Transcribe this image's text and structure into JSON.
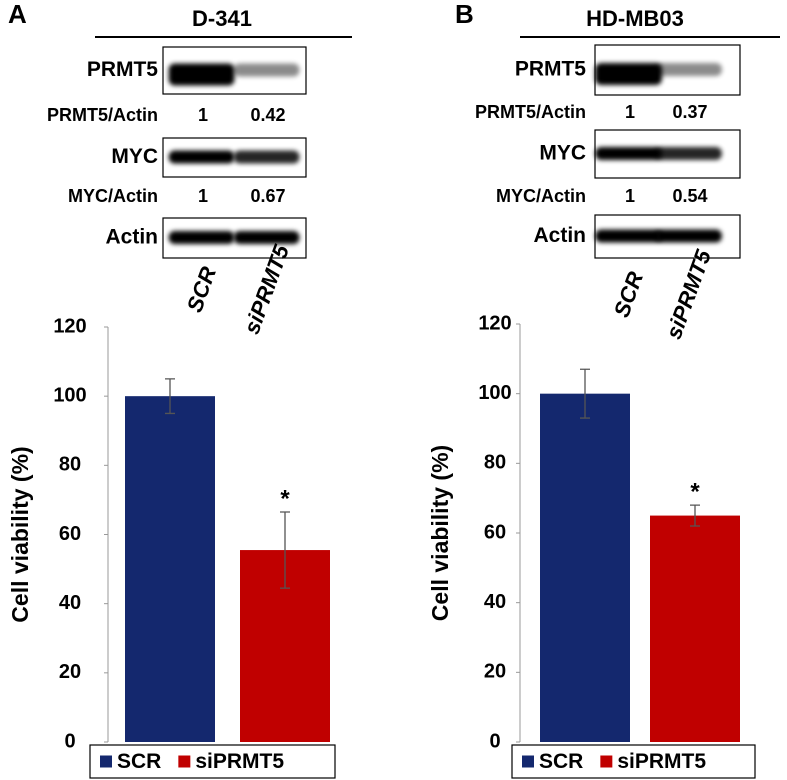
{
  "panels": [
    {
      "letter": "A",
      "cell_line": "D-341",
      "lanes": [
        "SCR",
        "siPRMT5"
      ],
      "blots": [
        {
          "label": "PRMT5",
          "ratio_label": "PRMT5/Actin",
          "ratios": [
            1,
            0.42
          ]
        },
        {
          "label": "MYC",
          "ratio_label": "MYC/Actin",
          "ratios": [
            1,
            0.67
          ]
        },
        {
          "label": "Actin"
        }
      ]
    },
    {
      "letter": "B",
      "cell_line": "HD-MB03",
      "lanes": [
        "SCR",
        "siPRMT5"
      ],
      "blots": [
        {
          "label": "PRMT5",
          "ratio_label": "PRMT5/Actin",
          "ratios": [
            1,
            0.37
          ]
        },
        {
          "label": "MYC",
          "ratio_label": "MYC/Actin",
          "ratios": [
            1,
            0.54
          ]
        },
        {
          "label": "Actin"
        }
      ]
    }
  ],
  "chart_data": [
    {
      "type": "bar",
      "y_label": "Cell viability (%)",
      "categories": [
        null
      ],
      "series": [
        {
          "name": "SCR",
          "color": "#14286e",
          "values": [
            100
          ],
          "errors": [
            5
          ]
        },
        {
          "name": "siPRMT5",
          "color": "#c00000",
          "values": [
            55.5
          ],
          "errors": [
            11
          ],
          "marker": "*"
        }
      ],
      "ylim": [
        0,
        120
      ],
      "yticks": [
        0,
        20,
        40,
        60,
        80,
        100,
        120
      ],
      "legend": "bottom"
    },
    {
      "type": "bar",
      "y_label": "Cell viability (%)",
      "categories": [
        null
      ],
      "series": [
        {
          "name": "SCR",
          "color": "#14286e",
          "values": [
            100
          ],
          "errors": [
            7
          ]
        },
        {
          "name": "siPRMT5",
          "color": "#c00000",
          "values": [
            65
          ],
          "errors": [
            3
          ],
          "marker": "*"
        }
      ],
      "ylim": [
        0,
        120
      ],
      "yticks": [
        0,
        20,
        40,
        60,
        80,
        100,
        120
      ],
      "legend": "bottom"
    }
  ]
}
